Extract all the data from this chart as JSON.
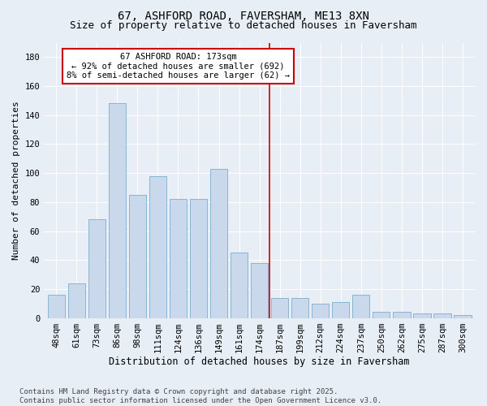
{
  "title": "67, ASHFORD ROAD, FAVERSHAM, ME13 8XN",
  "subtitle": "Size of property relative to detached houses in Faversham",
  "xlabel": "Distribution of detached houses by size in Faversham",
  "ylabel": "Number of detached properties",
  "bar_labels": [
    "48sqm",
    "61sqm",
    "73sqm",
    "86sqm",
    "98sqm",
    "111sqm",
    "124sqm",
    "136sqm",
    "149sqm",
    "161sqm",
    "174sqm",
    "187sqm",
    "199sqm",
    "212sqm",
    "224sqm",
    "237sqm",
    "250sqm",
    "262sqm",
    "275sqm",
    "287sqm",
    "300sqm"
  ],
  "bar_values": [
    16,
    24,
    68,
    148,
    85,
    98,
    82,
    82,
    103,
    45,
    38,
    14,
    14,
    10,
    11,
    16,
    4,
    4,
    3,
    3,
    2
  ],
  "bar_color": "#c9d9eb",
  "bar_edgecolor": "#8ab4d4",
  "vline_color": "#cc0000",
  "annotation_title": "67 ASHFORD ROAD: 173sqm",
  "annotation_line1": "← 92% of detached houses are smaller (692)",
  "annotation_line2": "8% of semi-detached houses are larger (62) →",
  "annotation_box_color": "#ffffff",
  "annotation_border_color": "#cc0000",
  "ylim": [
    0,
    190
  ],
  "yticks": [
    0,
    20,
    40,
    60,
    80,
    100,
    120,
    140,
    160,
    180
  ],
  "bg_color": "#e8eef5",
  "plot_bg_color": "#e8eef5",
  "footer": "Contains HM Land Registry data © Crown copyright and database right 2025.\nContains public sector information licensed under the Open Government Licence v3.0.",
  "title_fontsize": 10,
  "subtitle_fontsize": 9,
  "xlabel_fontsize": 8.5,
  "ylabel_fontsize": 8,
  "tick_fontsize": 7.5,
  "footer_fontsize": 6.5,
  "annot_fontsize": 7.5
}
